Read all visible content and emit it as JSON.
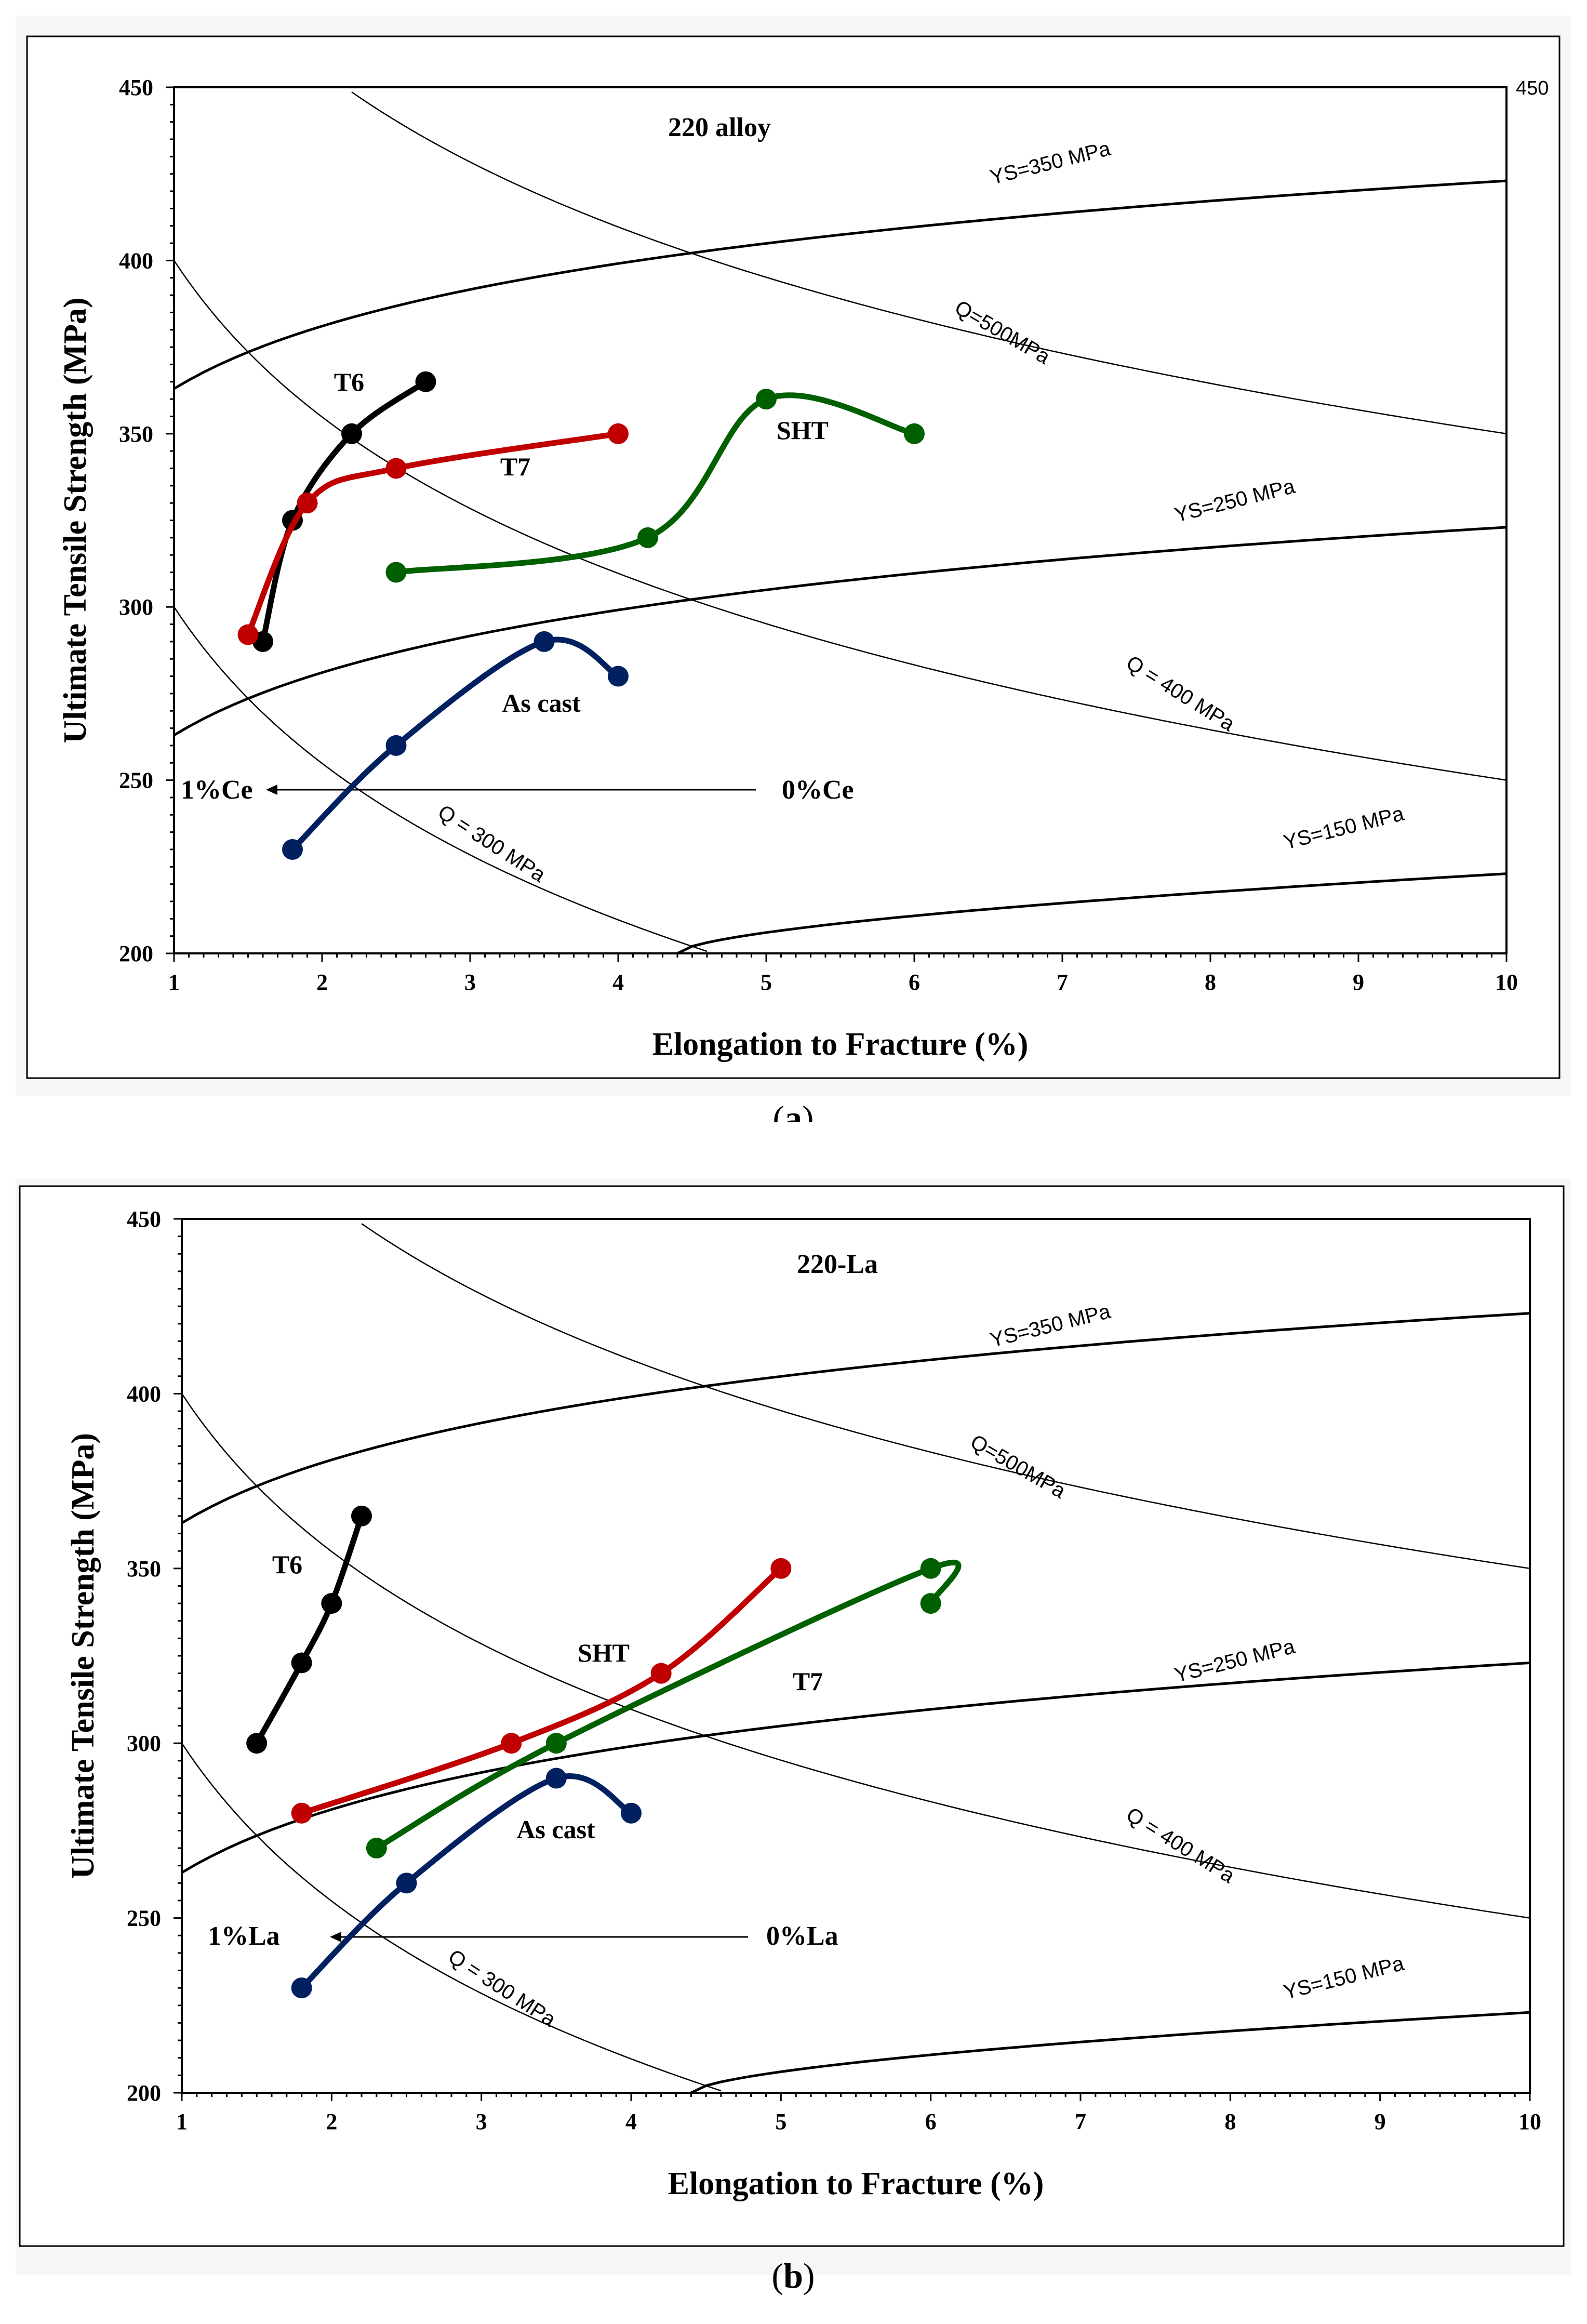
{
  "chart_data": [
    {
      "type": "line",
      "panel_caption": "a",
      "title": "220 alloy",
      "xlabel": "Elongation to Fracture (%)",
      "ylabel": "Ultimate Tensile Strength (MPa)",
      "xlim": [
        1,
        10
      ],
      "ylim": [
        200,
        450
      ],
      "x_ticks": [
        "1",
        "2",
        "3",
        "4",
        "5",
        "6",
        "7",
        "8",
        "9",
        "10"
      ],
      "y_ticks": [
        "200",
        "250",
        "300",
        "350",
        "400",
        "450"
      ],
      "right_tick_label": "450",
      "series": [
        {
          "name": "T6",
          "color": "#000000",
          "x": [
            1.6,
            1.8,
            2.2,
            2.7
          ],
          "y": [
            290,
            325,
            350,
            365
          ]
        },
        {
          "name": "T7",
          "color": "#c00000",
          "x": [
            1.5,
            1.9,
            2.5,
            4.0
          ],
          "y": [
            292,
            330,
            340,
            350
          ]
        },
        {
          "name": "SHT",
          "color": "#006000",
          "x": [
            2.5,
            4.2,
            5.0,
            6.0
          ],
          "y": [
            310,
            320,
            360,
            350
          ]
        },
        {
          "name": "As cast",
          "color": "#002060",
          "x": [
            1.8,
            2.5,
            3.5,
            4.0
          ],
          "y": [
            230,
            260,
            290,
            280
          ]
        }
      ],
      "iso_lines": [
        {
          "label": "YS=350 MPa",
          "kind": "ys",
          "value": 350
        },
        {
          "label": "YS=250 MPa",
          "kind": "ys",
          "value": 250
        },
        {
          "label": "YS=150 MPa",
          "kind": "ys",
          "value": 150
        },
        {
          "label": "Q=500MPa",
          "kind": "q",
          "value": 500
        },
        {
          "label": "Q = 400 MPa",
          "kind": "q",
          "value": 400
        },
        {
          "label": "Q = 300 MPa",
          "kind": "q",
          "value": 300
        }
      ],
      "annotations": {
        "from_label": "0%Ce",
        "to_label": "1%Ce"
      }
    },
    {
      "type": "line",
      "panel_caption": "b",
      "title": "220-La",
      "xlabel": "Elongation to Fracture (%)",
      "ylabel": "Ultimate Tensile Strength (MPa)",
      "xlim": [
        1,
        10
      ],
      "ylim": [
        200,
        450
      ],
      "x_ticks": [
        "1",
        "2",
        "3",
        "4",
        "5",
        "6",
        "7",
        "8",
        "9",
        "10"
      ],
      "y_ticks": [
        "200",
        "250",
        "300",
        "350",
        "400",
        "450"
      ],
      "series": [
        {
          "name": "T6",
          "color": "#000000",
          "x": [
            1.5,
            1.8,
            2.0,
            2.2
          ],
          "y": [
            300,
            323,
            340,
            365
          ]
        },
        {
          "name": "SHT",
          "color": "#c00000",
          "x": [
            1.8,
            3.2,
            4.2,
            5.0
          ],
          "y": [
            280,
            300,
            320,
            350
          ]
        },
        {
          "name": "T7",
          "color": "#006000",
          "x": [
            2.3,
            3.5,
            6.0,
            6.0
          ],
          "y": [
            270,
            300,
            350,
            340
          ]
        },
        {
          "name": "As cast",
          "color": "#002060",
          "x": [
            1.8,
            2.5,
            3.5,
            4.0
          ],
          "y": [
            230,
            260,
            290,
            280
          ]
        }
      ],
      "iso_lines": [
        {
          "label": "YS=350 MPa",
          "kind": "ys",
          "value": 350
        },
        {
          "label": "YS=250 MPa",
          "kind": "ys",
          "value": 250
        },
        {
          "label": "YS=150 MPa",
          "kind": "ys",
          "value": 150
        },
        {
          "label": "Q=500MPa",
          "kind": "q",
          "value": 500
        },
        {
          "label": "Q = 400 MPa",
          "kind": "q",
          "value": 400
        },
        {
          "label": "Q = 300 MPa",
          "kind": "q",
          "value": 300
        }
      ],
      "annotations": {
        "from_label": "0%La",
        "to_label": "1%La"
      }
    }
  ]
}
